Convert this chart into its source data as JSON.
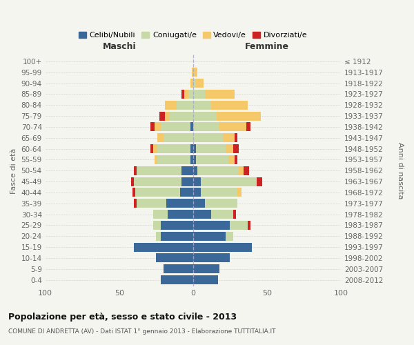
{
  "age_groups": [
    "0-4",
    "5-9",
    "10-14",
    "15-19",
    "20-24",
    "25-29",
    "30-34",
    "35-39",
    "40-44",
    "45-49",
    "50-54",
    "55-59",
    "60-64",
    "65-69",
    "70-74",
    "75-79",
    "80-84",
    "85-89",
    "90-94",
    "95-99",
    "100+"
  ],
  "birth_years": [
    "2008-2012",
    "2003-2007",
    "1998-2002",
    "1993-1997",
    "1988-1992",
    "1983-1987",
    "1978-1982",
    "1973-1977",
    "1968-1972",
    "1963-1967",
    "1958-1962",
    "1953-1957",
    "1948-1952",
    "1943-1947",
    "1938-1942",
    "1933-1937",
    "1928-1932",
    "1923-1927",
    "1918-1922",
    "1913-1917",
    "≤ 1912"
  ],
  "maschi": {
    "celibi": [
      22,
      20,
      25,
      40,
      22,
      22,
      17,
      18,
      9,
      8,
      8,
      2,
      2,
      0,
      2,
      0,
      0,
      0,
      0,
      0,
      0
    ],
    "coniugati": [
      0,
      0,
      0,
      0,
      3,
      5,
      10,
      20,
      30,
      32,
      30,
      22,
      22,
      20,
      20,
      16,
      11,
      3,
      0,
      0,
      0
    ],
    "vedovi": [
      0,
      0,
      0,
      0,
      0,
      0,
      0,
      0,
      0,
      0,
      0,
      2,
      3,
      4,
      4,
      3,
      8,
      3,
      2,
      1,
      0
    ],
    "divorziati": [
      0,
      0,
      0,
      0,
      0,
      0,
      0,
      2,
      2,
      2,
      2,
      0,
      2,
      0,
      3,
      4,
      0,
      2,
      0,
      0,
      0
    ]
  },
  "femmine": {
    "nubili": [
      17,
      18,
      25,
      40,
      22,
      25,
      12,
      8,
      5,
      5,
      3,
      2,
      2,
      0,
      0,
      0,
      0,
      0,
      0,
      0,
      0
    ],
    "coniugate": [
      0,
      0,
      0,
      0,
      5,
      12,
      15,
      22,
      25,
      38,
      28,
      22,
      20,
      20,
      18,
      16,
      12,
      8,
      2,
      0,
      0
    ],
    "vedove": [
      0,
      0,
      0,
      0,
      0,
      0,
      0,
      0,
      3,
      0,
      3,
      4,
      5,
      8,
      18,
      30,
      25,
      20,
      5,
      3,
      0
    ],
    "divorziate": [
      0,
      0,
      0,
      0,
      0,
      2,
      2,
      0,
      0,
      4,
      4,
      2,
      4,
      2,
      3,
      0,
      0,
      0,
      0,
      0,
      0
    ]
  },
  "colors": {
    "celibi": "#3a6898",
    "coniugati": "#c8d9a8",
    "vedovi": "#f5c96a",
    "divorziati": "#cc2222"
  },
  "xlim": 100,
  "title": "Popolazione per età, sesso e stato civile - 2013",
  "subtitle": "COMUNE DI ANDRETTA (AV) - Dati ISTAT 1° gennaio 2013 - Elaborazione TUTTITALIA.IT",
  "xlabel_left": "Maschi",
  "xlabel_right": "Femmine",
  "ylabel_left": "Fasce di età",
  "ylabel_right": "Anni di nascita",
  "legend_labels": [
    "Celibi/Nubili",
    "Coniugati/e",
    "Vedovi/e",
    "Divorziati/e"
  ],
  "bg_color": "#f5f5f0",
  "fig_width": 6.0,
  "fig_height": 5.0,
  "dpi": 100
}
